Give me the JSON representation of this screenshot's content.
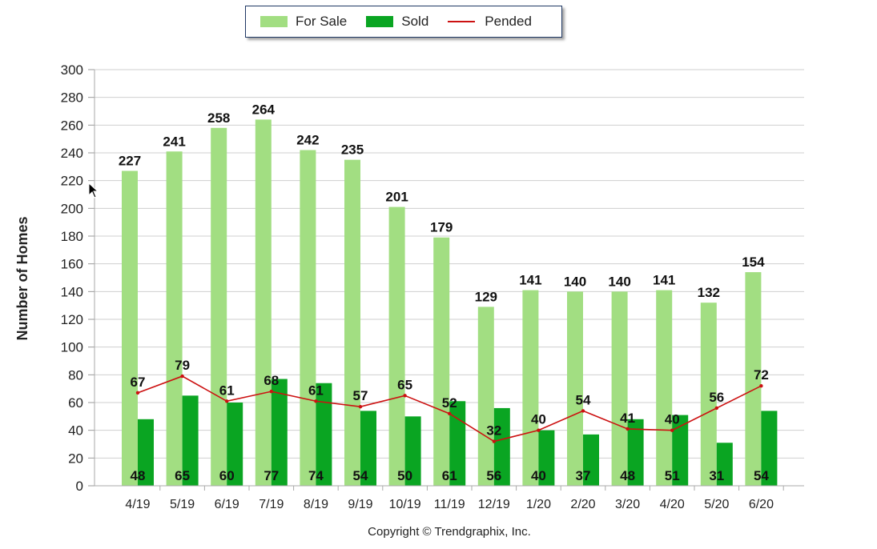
{
  "chart_data": {
    "type": "bar",
    "categories": [
      "4/19",
      "5/19",
      "6/19",
      "7/19",
      "8/19",
      "9/19",
      "10/19",
      "11/19",
      "12/19",
      "1/20",
      "2/20",
      "3/20",
      "4/20",
      "5/20",
      "6/20"
    ],
    "series": [
      {
        "name": "For Sale",
        "kind": "bar",
        "color": "#a2de82",
        "values": [
          227,
          241,
          258,
          264,
          242,
          235,
          201,
          179,
          129,
          141,
          140,
          140,
          141,
          132,
          154
        ]
      },
      {
        "name": "Sold",
        "kind": "bar",
        "color": "#0aa522",
        "values": [
          48,
          65,
          60,
          77,
          74,
          54,
          50,
          61,
          56,
          40,
          37,
          48,
          51,
          31,
          54
        ]
      },
      {
        "name": "Pended",
        "kind": "line",
        "color": "#cc1111",
        "values": [
          67,
          79,
          61,
          68,
          61,
          57,
          65,
          52,
          32,
          40,
          54,
          41,
          40,
          56,
          72
        ]
      }
    ],
    "ylabel": "Number of Homes",
    "ylim": [
      0,
      300
    ],
    "yticks": [
      0,
      20,
      40,
      60,
      80,
      100,
      120,
      140,
      160,
      180,
      200,
      220,
      240,
      260,
      280,
      300
    ],
    "grid": true,
    "legend": "top-center"
  },
  "footer": {
    "copyright": "Copyright © Trendgraphix, Inc."
  }
}
